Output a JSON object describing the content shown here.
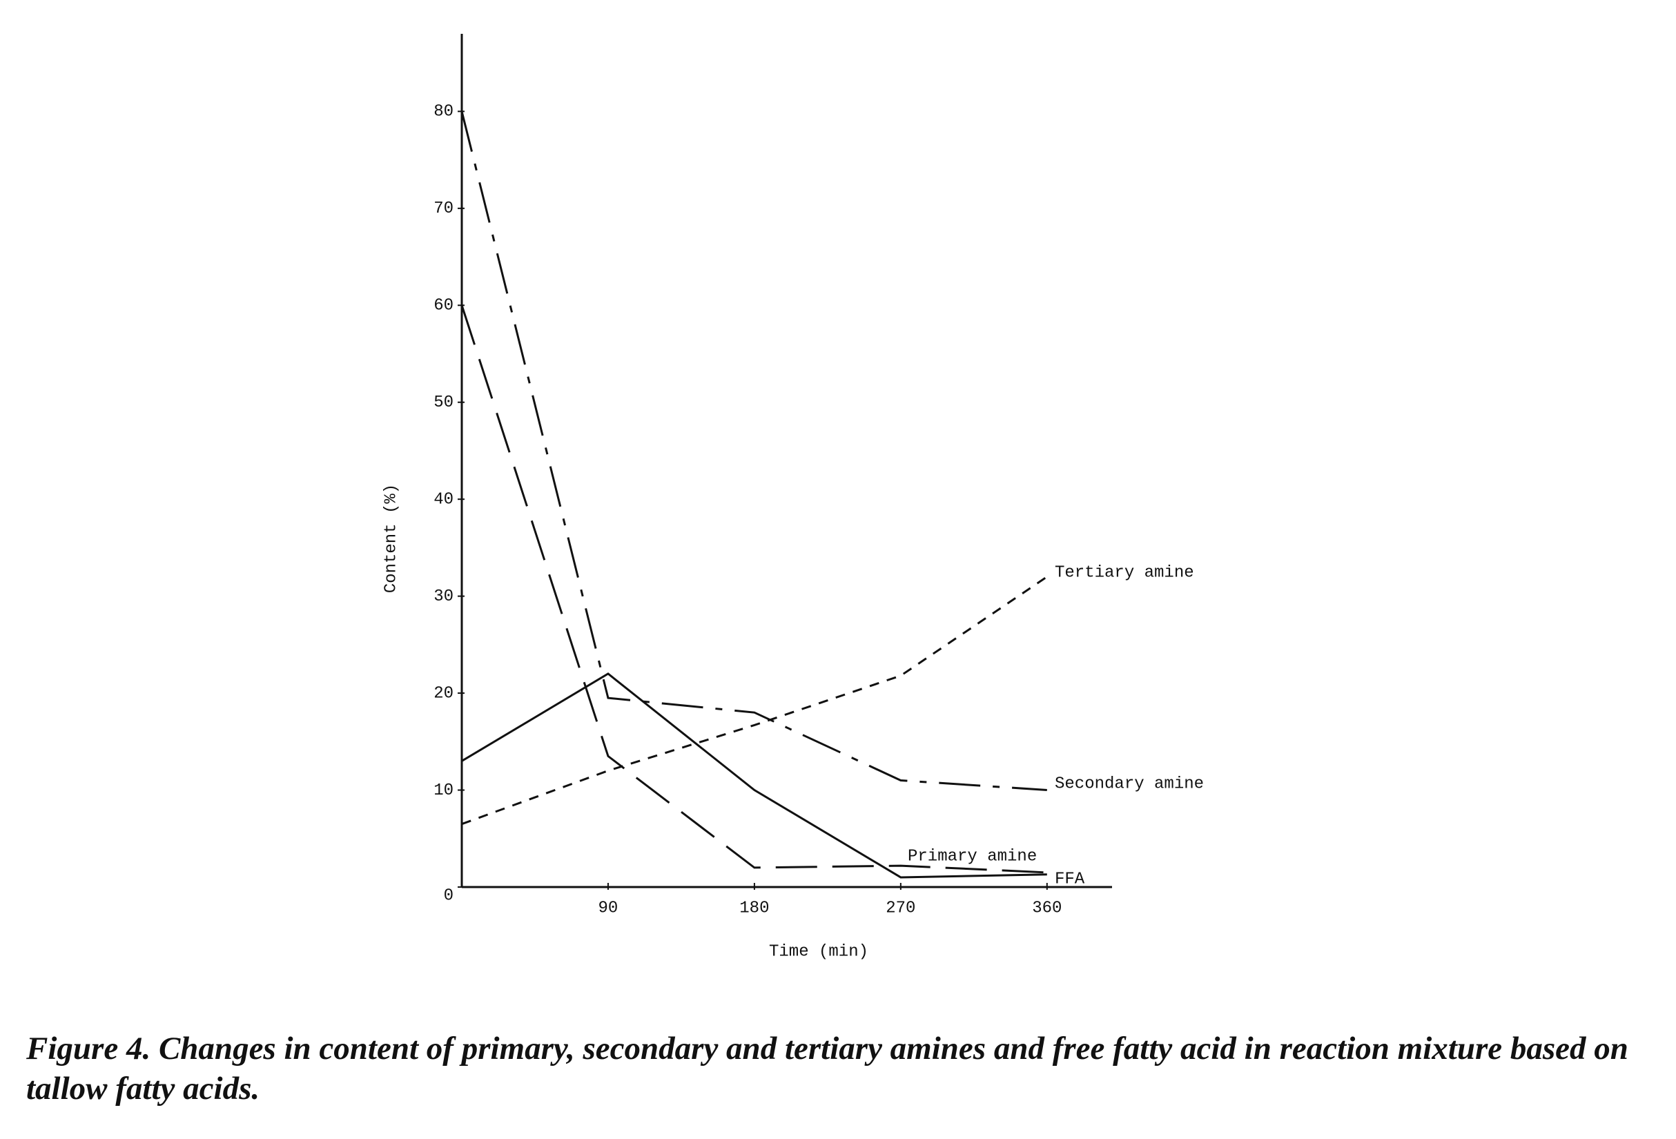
{
  "chart_data": {
    "type": "line",
    "x_label": "Time (min)",
    "y_label": "Content (%)",
    "x": [
      0,
      90,
      180,
      270,
      360
    ],
    "xlim": [
      0,
      400
    ],
    "xticks": [
      90,
      180,
      270,
      360
    ],
    "ylim": [
      0,
      88
    ],
    "yticks": [
      0,
      10,
      20,
      30,
      40,
      50,
      60,
      70,
      80
    ],
    "grid": false,
    "series": [
      {
        "name": "Tertiary amine",
        "color": "#111111",
        "values": [
          6.5,
          12,
          16.7,
          21.8,
          32
        ]
      },
      {
        "name": "Secondary amine",
        "color": "#111111",
        "values": [
          80,
          19.5,
          18,
          11,
          10
        ]
      },
      {
        "name": "Primary amine",
        "color": "#111111",
        "values": [
          60,
          13.5,
          2,
          2.2,
          1.5
        ]
      },
      {
        "name": "FFA",
        "color": "#111111",
        "values": [
          13,
          22,
          10,
          1,
          1.3
        ]
      }
    ]
  },
  "caption": "Figure 4. Changes in content of primary, secondary and tertiary amines and free fatty acid in reaction mixture based on tallow fatty acids."
}
